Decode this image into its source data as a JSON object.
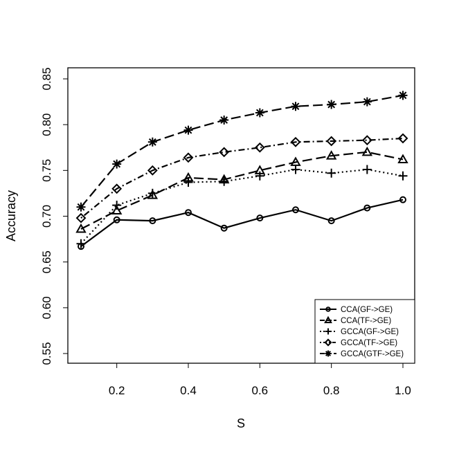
{
  "chart_data": {
    "type": "line",
    "title": "",
    "xlabel": "S",
    "ylabel": "Accuracy",
    "x": [
      0.1,
      0.2,
      0.3,
      0.4,
      0.5,
      0.6,
      0.7,
      0.8,
      0.9,
      1.0
    ],
    "xlim": [
      0.1,
      1.0
    ],
    "ylim": [
      0.55,
      0.85
    ],
    "xticks": [
      "0.2",
      "0.4",
      "0.6",
      "0.8",
      "1.0"
    ],
    "yticks": [
      "0.55",
      "0.60",
      "0.65",
      "0.70",
      "0.75",
      "0.80",
      "0.85"
    ],
    "grid": false,
    "legend_position": "bottom-right",
    "series": [
      {
        "name": "CCA(GF->GE)",
        "marker": "circle",
        "dash": "solid",
        "values": [
          0.667,
          0.696,
          0.695,
          0.704,
          0.687,
          0.698,
          0.707,
          0.695,
          0.709,
          0.718
        ]
      },
      {
        "name": "CCA(TF->GE)",
        "marker": "triangle",
        "dash": "longdash",
        "values": [
          0.686,
          0.706,
          0.723,
          0.742,
          0.74,
          0.75,
          0.759,
          0.766,
          0.77,
          0.762
        ]
      },
      {
        "name": "GCCA(GF->GE)",
        "marker": "plus",
        "dash": "dotted",
        "values": [
          0.67,
          0.712,
          0.725,
          0.737,
          0.738,
          0.744,
          0.751,
          0.747,
          0.751,
          0.744
        ]
      },
      {
        "name": "GCCA(TF->GE)",
        "marker": "diamond",
        "dash": "dotdash",
        "values": [
          0.698,
          0.73,
          0.75,
          0.764,
          0.77,
          0.775,
          0.781,
          0.782,
          0.783,
          0.785
        ]
      },
      {
        "name": "GCCA(GTF->GE)",
        "marker": "star",
        "dash": "longdash",
        "values": [
          0.71,
          0.757,
          0.781,
          0.794,
          0.805,
          0.813,
          0.82,
          0.822,
          0.825,
          0.832
        ]
      }
    ]
  }
}
